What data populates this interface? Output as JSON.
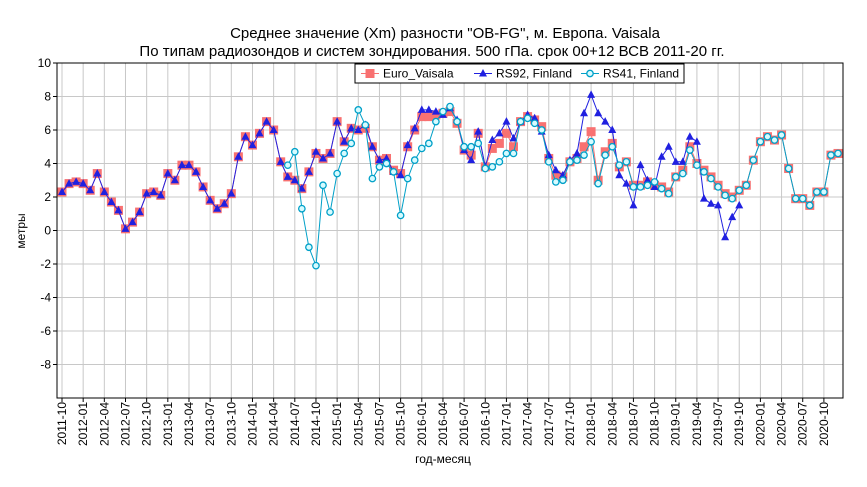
{
  "chart_data": {
    "type": "line",
    "title": "Среднее значение (Xm) разности \"OB-FG\", м. Европа. Vaisala",
    "subtitle": "По типам радиозондов и систем зондирования. 500 гПа. срок 00+12 ВСВ 2011-20 гг.",
    "xlabel": "год-месяц",
    "ylabel": "метры",
    "ylim": [
      -10,
      10
    ],
    "yticks": [
      10,
      8,
      6,
      4,
      2,
      0,
      -2,
      -4,
      -6,
      -8
    ],
    "x_start": "2011-10",
    "x_end": "2020-12",
    "xtick_labels": [
      "2011-10",
      "2012-01",
      "2012-04",
      "2012-07",
      "2012-10",
      "2013-01",
      "2013-04",
      "2013-07",
      "2013-10",
      "2014-01",
      "2014-04",
      "2014-07",
      "2014-10",
      "2015-01",
      "2015-04",
      "2015-07",
      "2015-10",
      "2016-01",
      "2016-04",
      "2016-07",
      "2016-10",
      "2017-01",
      "2017-04",
      "2017-07",
      "2017-10",
      "2018-01",
      "2018-04",
      "2018-07",
      "2018-10",
      "2019-01",
      "2019-04",
      "2019-07",
      "2019-10",
      "2020-01",
      "2020-04",
      "2020-07",
      "2020-10"
    ],
    "grid": true,
    "legend_position": "top-right",
    "series": [
      {
        "name": "Euro_Vaisala",
        "color": "#f87171",
        "marker": "square",
        "points": [
          [
            "2011-10",
            2.3
          ],
          [
            "2011-11",
            2.8
          ],
          [
            "2011-12",
            2.9
          ],
          [
            "2012-01",
            2.8
          ],
          [
            "2012-02",
            2.4
          ],
          [
            "2012-03",
            3.4
          ],
          [
            "2012-04",
            2.3
          ],
          [
            "2012-05",
            1.7
          ],
          [
            "2012-06",
            1.2
          ],
          [
            "2012-07",
            0.1
          ],
          [
            "2012-08",
            0.5
          ],
          [
            "2012-09",
            1.1
          ],
          [
            "2012-10",
            2.2
          ],
          [
            "2012-11",
            2.3
          ],
          [
            "2012-12",
            2.1
          ],
          [
            "2013-01",
            3.4
          ],
          [
            "2013-02",
            3.0
          ],
          [
            "2013-03",
            3.9
          ],
          [
            "2013-04",
            3.9
          ],
          [
            "2013-05",
            3.5
          ],
          [
            "2013-06",
            2.6
          ],
          [
            "2013-07",
            1.8
          ],
          [
            "2013-08",
            1.3
          ],
          [
            "2013-09",
            1.6
          ],
          [
            "2013-10",
            2.2
          ],
          [
            "2013-11",
            4.4
          ],
          [
            "2013-12",
            5.6
          ],
          [
            "2014-01",
            5.1
          ],
          [
            "2014-02",
            5.8
          ],
          [
            "2014-03",
            6.5
          ],
          [
            "2014-04",
            6.0
          ],
          [
            "2014-05",
            4.1
          ],
          [
            "2014-06",
            3.2
          ],
          [
            "2014-07",
            3.0
          ],
          [
            "2014-08",
            2.5
          ],
          [
            "2014-09",
            3.5
          ],
          [
            "2014-10",
            4.6
          ],
          [
            "2014-11",
            4.3
          ],
          [
            "2014-12",
            4.6
          ],
          [
            "2015-01",
            6.5
          ],
          [
            "2015-02",
            5.3
          ],
          [
            "2015-03",
            6.1
          ],
          [
            "2015-04",
            6.0
          ],
          [
            "2015-05",
            6.1
          ],
          [
            "2015-06",
            5.0
          ],
          [
            "2015-07",
            4.2
          ],
          [
            "2015-08",
            4.3
          ],
          [
            "2015-09",
            3.6
          ],
          [
            "2015-10",
            3.4
          ],
          [
            "2015-11",
            5.0
          ],
          [
            "2015-12",
            6.0
          ],
          [
            "2016-01",
            6.8
          ],
          [
            "2016-02",
            6.8
          ],
          [
            "2016-03",
            6.9
          ],
          [
            "2016-04",
            7.0
          ],
          [
            "2016-05",
            7.1
          ],
          [
            "2016-06",
            6.4
          ],
          [
            "2016-07",
            4.8
          ],
          [
            "2016-08",
            4.5
          ],
          [
            "2016-09",
            5.8
          ],
          [
            "2016-10",
            3.8
          ],
          [
            "2016-11",
            4.9
          ],
          [
            "2016-12",
            5.2
          ],
          [
            "2017-01",
            5.8
          ],
          [
            "2017-02",
            5.0
          ],
          [
            "2017-03",
            6.5
          ],
          [
            "2017-04",
            6.8
          ],
          [
            "2017-05",
            6.6
          ],
          [
            "2017-06",
            6.2
          ],
          [
            "2017-07",
            4.3
          ],
          [
            "2017-08",
            3.3
          ],
          [
            "2017-09",
            3.2
          ],
          [
            "2017-10",
            4.1
          ],
          [
            "2017-11",
            4.3
          ],
          [
            "2017-12",
            5.0
          ],
          [
            "2018-01",
            5.9
          ],
          [
            "2018-02",
            3.0
          ],
          [
            "2018-03",
            4.7
          ],
          [
            "2018-04",
            5.2
          ],
          [
            "2018-05",
            3.8
          ],
          [
            "2018-06",
            4.1
          ],
          [
            "2018-07",
            2.7
          ],
          [
            "2018-08",
            2.7
          ],
          [
            "2018-09",
            2.9
          ],
          [
            "2018-10",
            2.7
          ],
          [
            "2018-11",
            2.6
          ],
          [
            "2018-12",
            2.3
          ],
          [
            "2019-01",
            3.2
          ],
          [
            "2019-02",
            3.6
          ],
          [
            "2019-03",
            5.0
          ],
          [
            "2019-04",
            4.0
          ],
          [
            "2019-05",
            3.6
          ],
          [
            "2019-06",
            3.2
          ],
          [
            "2019-07",
            2.7
          ],
          [
            "2019-08",
            2.2
          ],
          [
            "2019-09",
            2.0
          ],
          [
            "2019-10",
            2.4
          ],
          [
            "2019-11",
            2.7
          ],
          [
            "2019-12",
            4.2
          ],
          [
            "2020-01",
            5.3
          ],
          [
            "2020-02",
            5.6
          ],
          [
            "2020-03",
            5.4
          ],
          [
            "2020-04",
            5.7
          ],
          [
            "2020-05",
            3.7
          ],
          [
            "2020-06",
            1.9
          ],
          [
            "2020-07",
            1.9
          ],
          [
            "2020-08",
            1.5
          ],
          [
            "2020-09",
            2.3
          ],
          [
            "2020-10",
            2.3
          ],
          [
            "2020-11",
            4.5
          ],
          [
            "2020-12",
            4.6
          ]
        ]
      },
      {
        "name": "RS92, Finland",
        "color": "#2020e0",
        "marker": "triangle",
        "points": [
          [
            "2011-10",
            2.3
          ],
          [
            "2011-11",
            2.8
          ],
          [
            "2011-12",
            2.9
          ],
          [
            "2012-01",
            2.8
          ],
          [
            "2012-02",
            2.4
          ],
          [
            "2012-03",
            3.4
          ],
          [
            "2012-04",
            2.3
          ],
          [
            "2012-05",
            1.7
          ],
          [
            "2012-06",
            1.2
          ],
          [
            "2012-07",
            0.1
          ],
          [
            "2012-08",
            0.5
          ],
          [
            "2012-09",
            1.1
          ],
          [
            "2012-10",
            2.2
          ],
          [
            "2012-11",
            2.3
          ],
          [
            "2012-12",
            2.1
          ],
          [
            "2013-01",
            3.4
          ],
          [
            "2013-02",
            3.0
          ],
          [
            "2013-03",
            3.9
          ],
          [
            "2013-04",
            3.9
          ],
          [
            "2013-05",
            3.5
          ],
          [
            "2013-06",
            2.6
          ],
          [
            "2013-07",
            1.8
          ],
          [
            "2013-08",
            1.3
          ],
          [
            "2013-09",
            1.6
          ],
          [
            "2013-10",
            2.2
          ],
          [
            "2013-11",
            4.4
          ],
          [
            "2013-12",
            5.6
          ],
          [
            "2014-01",
            5.1
          ],
          [
            "2014-02",
            5.8
          ],
          [
            "2014-03",
            6.5
          ],
          [
            "2014-04",
            6.0
          ],
          [
            "2014-05",
            4.1
          ],
          [
            "2014-06",
            3.2
          ],
          [
            "2014-07",
            3.0
          ],
          [
            "2014-08",
            2.5
          ],
          [
            "2014-09",
            3.5
          ],
          [
            "2014-10",
            4.7
          ],
          [
            "2014-11",
            4.3
          ],
          [
            "2014-12",
            4.6
          ],
          [
            "2015-01",
            6.5
          ],
          [
            "2015-02",
            5.3
          ],
          [
            "2015-03",
            6.1
          ],
          [
            "2015-04",
            6.0
          ],
          [
            "2015-05",
            6.3
          ],
          [
            "2015-06",
            5.0
          ],
          [
            "2015-07",
            4.2
          ],
          [
            "2015-08",
            4.3
          ],
          [
            "2015-09",
            3.5
          ],
          [
            "2015-10",
            3.3
          ],
          [
            "2015-11",
            5.1
          ],
          [
            "2015-12",
            6.1
          ],
          [
            "2016-01",
            7.2
          ],
          [
            "2016-02",
            7.2
          ],
          [
            "2016-03",
            7.1
          ],
          [
            "2016-04",
            6.9
          ],
          [
            "2016-05",
            7.3
          ],
          [
            "2016-06",
            6.6
          ],
          [
            "2016-07",
            4.8
          ],
          [
            "2016-08",
            4.2
          ],
          [
            "2016-09",
            5.9
          ],
          [
            "2016-10",
            3.8
          ],
          [
            "2016-11",
            5.4
          ],
          [
            "2016-12",
            5.8
          ],
          [
            "2017-01",
            6.5
          ],
          [
            "2017-02",
            5.5
          ],
          [
            "2017-03",
            6.5
          ],
          [
            "2017-04",
            6.9
          ],
          [
            "2017-05",
            6.7
          ],
          [
            "2017-06",
            5.9
          ],
          [
            "2017-07",
            4.5
          ],
          [
            "2017-08",
            3.6
          ],
          [
            "2017-09",
            3.3
          ],
          [
            "2017-10",
            4.2
          ],
          [
            "2017-11",
            4.6
          ],
          [
            "2017-12",
            7.0
          ],
          [
            "2018-01",
            8.1
          ],
          [
            "2018-02",
            7.0
          ],
          [
            "2018-03",
            6.5
          ],
          [
            "2018-04",
            6.0
          ],
          [
            "2018-05",
            3.3
          ],
          [
            "2018-06",
            2.8
          ],
          [
            "2018-07",
            1.5
          ],
          [
            "2018-08",
            3.9
          ],
          [
            "2018-09",
            3.0
          ],
          [
            "2018-10",
            2.6
          ],
          [
            "2018-11",
            4.4
          ],
          [
            "2018-12",
            5.0
          ],
          [
            "2019-01",
            4.1
          ],
          [
            "2019-02",
            4.1
          ],
          [
            "2019-03",
            5.6
          ],
          [
            "2019-04",
            5.3
          ],
          [
            "2019-05",
            1.9
          ],
          [
            "2019-06",
            1.6
          ],
          [
            "2019-07",
            1.5
          ],
          [
            "2019-08",
            -0.4
          ],
          [
            "2019-09",
            0.8
          ],
          [
            "2019-10",
            1.5
          ]
        ]
      },
      {
        "name": "RS41, Finland",
        "color": "#00a0c8",
        "marker": "circle",
        "points": [
          [
            "2014-06",
            3.9
          ],
          [
            "2014-07",
            4.7
          ],
          [
            "2014-08",
            1.3
          ],
          [
            "2014-09",
            -1.0
          ],
          [
            "2014-10",
            -2.1
          ],
          [
            "2014-11",
            2.7
          ],
          [
            "2014-12",
            1.1
          ],
          [
            "2015-01",
            3.4
          ],
          [
            "2015-02",
            4.6
          ],
          [
            "2015-03",
            5.2
          ],
          [
            "2015-04",
            7.2
          ],
          [
            "2015-05",
            6.3
          ],
          [
            "2015-06",
            3.1
          ],
          [
            "2015-07",
            3.8
          ],
          [
            "2015-08",
            4.0
          ],
          [
            "2015-09",
            3.5
          ],
          [
            "2015-10",
            0.9
          ],
          [
            "2015-11",
            3.1
          ],
          [
            "2015-12",
            4.2
          ],
          [
            "2016-01",
            4.9
          ],
          [
            "2016-02",
            5.2
          ],
          [
            "2016-03",
            6.5
          ],
          [
            "2016-04",
            7.1
          ],
          [
            "2016-05",
            7.4
          ],
          [
            "2016-06",
            6.5
          ],
          [
            "2016-07",
            5.0
          ],
          [
            "2016-08",
            5.0
          ],
          [
            "2016-09",
            5.2
          ],
          [
            "2016-10",
            3.7
          ],
          [
            "2016-11",
            3.8
          ],
          [
            "2016-12",
            4.1
          ],
          [
            "2017-01",
            4.6
          ],
          [
            "2017-02",
            4.6
          ],
          [
            "2017-03",
            6.5
          ],
          [
            "2017-04",
            6.7
          ],
          [
            "2017-05",
            6.4
          ],
          [
            "2017-06",
            6.0
          ],
          [
            "2017-07",
            4.1
          ],
          [
            "2017-08",
            2.9
          ],
          [
            "2017-09",
            3.0
          ],
          [
            "2017-10",
            4.1
          ],
          [
            "2017-11",
            4.2
          ],
          [
            "2017-12",
            4.5
          ],
          [
            "2018-01",
            5.3
          ],
          [
            "2018-02",
            2.8
          ],
          [
            "2018-03",
            4.5
          ],
          [
            "2018-04",
            5.0
          ],
          [
            "2018-05",
            3.9
          ],
          [
            "2018-06",
            4.1
          ],
          [
            "2018-07",
            2.6
          ],
          [
            "2018-08",
            2.6
          ],
          [
            "2018-09",
            2.7
          ],
          [
            "2018-10",
            2.9
          ],
          [
            "2018-11",
            2.5
          ],
          [
            "2018-12",
            2.2
          ],
          [
            "2019-01",
            3.2
          ],
          [
            "2019-02",
            3.4
          ],
          [
            "2019-03",
            4.8
          ],
          [
            "2019-04",
            3.9
          ],
          [
            "2019-05",
            3.5
          ],
          [
            "2019-06",
            3.1
          ],
          [
            "2019-07",
            2.6
          ],
          [
            "2019-08",
            2.1
          ],
          [
            "2019-09",
            1.9
          ],
          [
            "2019-10",
            2.4
          ],
          [
            "2019-11",
            2.7
          ],
          [
            "2019-12",
            4.2
          ],
          [
            "2020-01",
            5.3
          ],
          [
            "2020-02",
            5.6
          ],
          [
            "2020-03",
            5.4
          ],
          [
            "2020-04",
            5.7
          ],
          [
            "2020-05",
            3.7
          ],
          [
            "2020-06",
            1.9
          ],
          [
            "2020-07",
            1.9
          ],
          [
            "2020-08",
            1.5
          ],
          [
            "2020-09",
            2.3
          ],
          [
            "2020-10",
            2.3
          ],
          [
            "2020-11",
            4.5
          ],
          [
            "2020-12",
            4.6
          ]
        ]
      }
    ]
  }
}
